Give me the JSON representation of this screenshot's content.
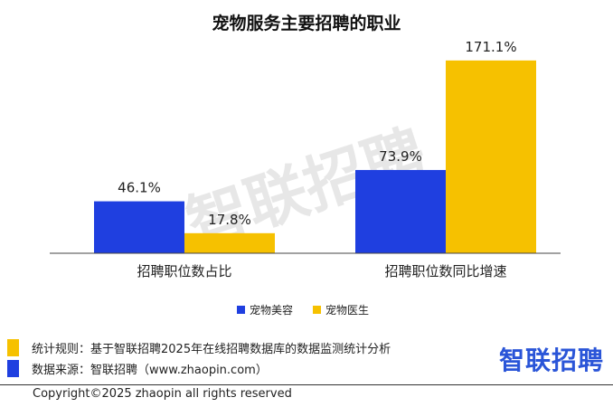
{
  "chart_data": {
    "type": "bar",
    "title": "宠物服务主要招聘的职业",
    "categories": [
      "招聘职位数占比",
      "招聘职位数同比增速"
    ],
    "series": [
      {
        "name": "宠物美容",
        "values": [
          46.1,
          73.9
        ],
        "labels": [
          "46.1%",
          "73.9%"
        ],
        "color": "#1f3fe0"
      },
      {
        "name": "宠物医生",
        "values": [
          17.8,
          171.1
        ],
        "labels": [
          "17.8%",
          "171.1%"
        ],
        "color": "#f6c100"
      }
    ],
    "ylim": [
      0,
      175
    ],
    "grid": false,
    "legend": "bottom",
    "watermark": "智联招聘"
  },
  "footer": {
    "rule": "统计规则：基于智联招聘2025年在线招聘数据库的数据监测统计分析",
    "source": "数据来源：智联招聘（www.zhaopin.com）",
    "brand": "智联招聘",
    "copyright": "Copyright©2025 zhaopin all rights reserved",
    "rule_color": "#f6c100",
    "source_color": "#1f3fe0"
  }
}
